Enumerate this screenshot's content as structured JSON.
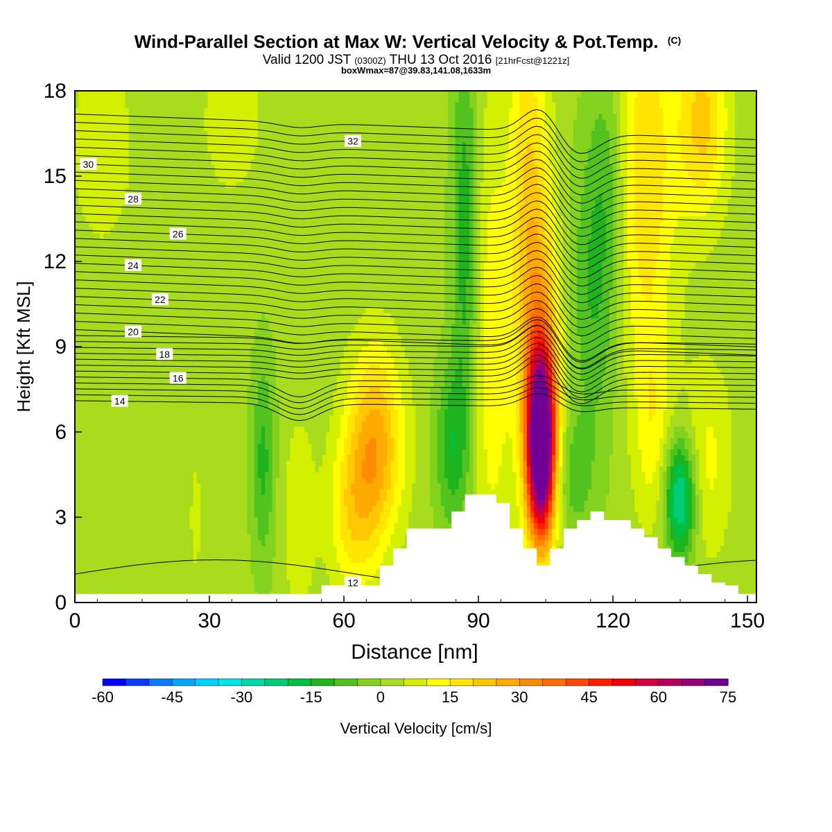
{
  "header": {
    "title_main": "Wind-Parallel Section at Max W: Vertical Velocity & Pot.Temp.",
    "title_mark": "(C)",
    "valid_prefix": "Valid 1200 JST",
    "valid_utc": "(0300Z)",
    "valid_date": "THU 13 Oct 2016",
    "valid_fcst": "[21hrFcst@1221z]",
    "subtitle2": "boxWmax=87@39.83,141.08,1633m"
  },
  "chart_data": {
    "type": "heatmap",
    "title": "Wind-Parallel Section at Max W: Vertical Velocity & Pot.Temp.",
    "xlabel": "Distance [nm]",
    "ylabel": "Height [Kft MSL]",
    "xlim": [
      0,
      152
    ],
    "ylim": [
      0,
      18
    ],
    "x_ticks": [
      0,
      30,
      60,
      90,
      120,
      150
    ],
    "y_ticks": [
      0,
      3,
      6,
      9,
      12,
      15,
      18
    ],
    "colorbar": {
      "label": "Vertical Velocity [cm/s]",
      "ticks": [
        -60,
        -45,
        -30,
        -15,
        0,
        15,
        30,
        45,
        60,
        75
      ],
      "levels": [
        -60,
        -55,
        -50,
        -45,
        -40,
        -35,
        -30,
        -25,
        -20,
        -15,
        -10,
        -5,
        0,
        5,
        10,
        15,
        20,
        25,
        30,
        35,
        40,
        45,
        50,
        55,
        60,
        65,
        70,
        75
      ],
      "colors": [
        "#0000ff",
        "#0a3cff",
        "#0a78ff",
        "#00a8ff",
        "#00d0ff",
        "#00e6e6",
        "#00d8a8",
        "#00cc78",
        "#00c040",
        "#1eb41e",
        "#50c31e",
        "#82d21e",
        "#aadc1e",
        "#d2f000",
        "#ffff00",
        "#ffe600",
        "#ffc800",
        "#ffaa00",
        "#ff8c00",
        "#ff6e00",
        "#ff4600",
        "#ff1e00",
        "#f00000",
        "#d2003c",
        "#b4005a",
        "#96007a",
        "#6e0096"
      ]
    },
    "w_max": 87,
    "terrain": {
      "x": [
        0,
        55,
        55,
        61,
        61,
        68,
        68,
        71,
        71,
        74,
        74,
        84,
        84,
        87,
        87,
        90,
        90,
        94,
        94,
        97,
        97,
        100,
        100,
        103,
        103,
        106,
        106,
        109,
        109,
        112,
        112,
        115,
        115,
        118,
        118,
        124,
        124,
        127,
        127,
        130,
        130,
        133,
        133,
        136,
        136,
        139,
        139,
        142,
        142,
        145,
        145,
        148,
        148,
        152
      ],
      "z": [
        0.3,
        0.3,
        0.6,
        0.6,
        0.6,
        0.6,
        1.3,
        1.3,
        1.9,
        1.9,
        2.6,
        2.6,
        3.2,
        3.2,
        3.8,
        3.8,
        3.8,
        3.8,
        3.5,
        3.5,
        2.6,
        2.6,
        1.9,
        1.9,
        1.3,
        1.3,
        1.9,
        1.9,
        2.6,
        2.6,
        2.9,
        2.9,
        3.2,
        3.2,
        2.9,
        2.9,
        2.6,
        2.6,
        2.3,
        2.3,
        1.9,
        1.9,
        1.6,
        1.6,
        1.3,
        1.3,
        1.0,
        1.0,
        0.7,
        0.7,
        0.6,
        0.6,
        0.3,
        0.3
      ]
    },
    "w_features": [
      {
        "x": 104,
        "z": 5.5,
        "sx": 2.2,
        "sz": 2.2,
        "w": 86
      },
      {
        "x": 104,
        "z": 8.8,
        "sx": 3.2,
        "sz": 4.0,
        "w": 22
      },
      {
        "x": 101,
        "z": 15.0,
        "sx": 3.0,
        "sz": 6.0,
        "w": 16
      },
      {
        "x": 67,
        "z": 5.6,
        "sx": 4.5,
        "sz": 2.4,
        "w": 26
      },
      {
        "x": 62,
        "z": 3.0,
        "sx": 4.0,
        "sz": 2.0,
        "w": 14
      },
      {
        "x": 127,
        "z": 15.0,
        "sx": 5.0,
        "sz": 5.0,
        "w": 18
      },
      {
        "x": 140,
        "z": 17.0,
        "sx": 4.0,
        "sz": 2.5,
        "w": 20
      },
      {
        "x": 141,
        "z": 5.0,
        "sx": 4.0,
        "sz": 2.5,
        "w": 10
      },
      {
        "x": 93,
        "z": 9.0,
        "sx": 3.0,
        "sz": 6.0,
        "w": 12
      },
      {
        "x": 129,
        "z": 6.0,
        "sx": 3.0,
        "sz": 2.5,
        "w": 10
      },
      {
        "x": 87,
        "z": 13.0,
        "sx": 2.0,
        "sz": 5.0,
        "w": -15
      },
      {
        "x": 84,
        "z": 5.5,
        "sx": 2.5,
        "sz": 2.0,
        "w": -15
      },
      {
        "x": 135,
        "z": 3.7,
        "sx": 2.5,
        "sz": 1.5,
        "w": -30
      },
      {
        "x": 42,
        "z": 5.0,
        "sx": 1.8,
        "sz": 2.5,
        "w": -13
      },
      {
        "x": 116,
        "z": 11.0,
        "sx": 4.0,
        "sz": 3.5,
        "w": -12
      },
      {
        "x": 111,
        "z": 4.5,
        "sx": 3.5,
        "sz": 1.5,
        "w": -10
      },
      {
        "x": 119,
        "z": 15.5,
        "sx": 3.0,
        "sz": 3.0,
        "w": -9
      },
      {
        "x": 35,
        "z": 17.0,
        "sx": 5.0,
        "sz": 2.0,
        "w": 7
      },
      {
        "x": 6,
        "z": 16.0,
        "sx": 6.0,
        "sz": 3.0,
        "w": 6
      },
      {
        "x": 50,
        "z": 3.0,
        "sx": 2.5,
        "sz": 2.5,
        "w": 8
      },
      {
        "x": 27,
        "z": 3.0,
        "sx": 2.0,
        "sz": 3.0,
        "w": 4
      }
    ],
    "isentropes": [
      {
        "theta": 12,
        "label": "12",
        "label_x": 62
      },
      {
        "theta": 14,
        "label": "14",
        "label_x": 10
      },
      {
        "theta": 16,
        "label": "16",
        "label_x": 23
      },
      {
        "theta": 18,
        "label": "18",
        "label_x": 20
      },
      {
        "theta": 20,
        "label": "20",
        "label_x": 13
      },
      {
        "theta": 22,
        "label": "22",
        "label_x": 19
      },
      {
        "theta": 24,
        "label": "24",
        "label_x": 13
      },
      {
        "theta": 26,
        "label": "26",
        "label_x": 23
      },
      {
        "theta": 28,
        "label": "28",
        "label_x": 13
      },
      {
        "theta": 30,
        "label": "30",
        "label_x": 3
      },
      {
        "theta": 32,
        "label": "32",
        "label_x": 62
      }
    ]
  }
}
